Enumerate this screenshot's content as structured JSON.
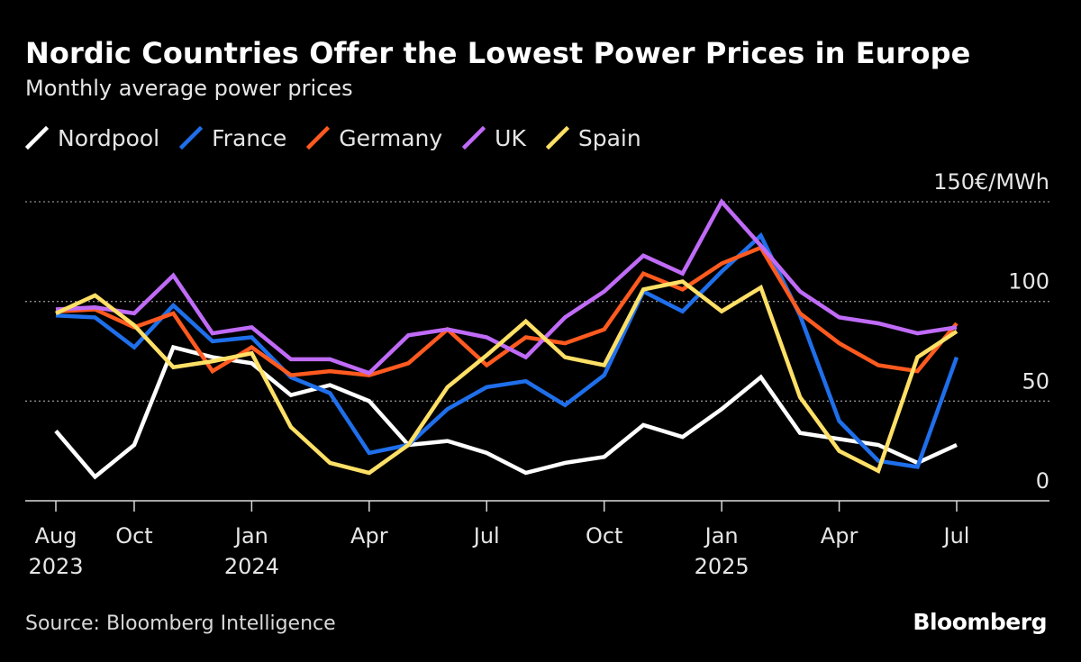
{
  "header": {
    "title": "Nordic Countries Offer the Lowest Power Prices in Europe",
    "subtitle": "Monthly average power prices"
  },
  "legend": [
    {
      "name": "Nordpool",
      "color": "#ffffff"
    },
    {
      "name": "France",
      "color": "#1f6feb"
    },
    {
      "name": "Germany",
      "color": "#ff5a1f"
    },
    {
      "name": "UK",
      "color": "#c06bf7"
    },
    {
      "name": "Spain",
      "color": "#ffe066"
    }
  ],
  "footer": {
    "source": "Source: Bloomberg Intelligence",
    "brand": "Bloomberg"
  },
  "chart_data": {
    "type": "line",
    "title": "Nordic Countries Offer the Lowest Power Prices in Europe",
    "subtitle": "Monthly average power prices",
    "xlabel": "",
    "ylabel": "€/MWh",
    "ylim": [
      0,
      150
    ],
    "yticks": [
      0,
      50,
      100,
      150
    ],
    "ytick_labels": [
      "0",
      "50",
      "100",
      "150€/MWh"
    ],
    "grid": true,
    "legend_position": "top-left",
    "x": [
      "2023-08",
      "2023-09",
      "2023-10",
      "2023-11",
      "2023-12",
      "2024-01",
      "2024-02",
      "2024-03",
      "2024-04",
      "2024-05",
      "2024-06",
      "2024-07",
      "2024-08",
      "2024-09",
      "2024-10",
      "2024-11",
      "2024-12",
      "2025-01",
      "2025-02",
      "2025-03",
      "2025-04",
      "2025-05",
      "2025-06",
      "2025-07"
    ],
    "xtick_labels": [
      {
        "index": 0,
        "month": "Aug",
        "year": "2023"
      },
      {
        "index": 2,
        "month": "Oct",
        "year": ""
      },
      {
        "index": 5,
        "month": "Jan",
        "year": "2024"
      },
      {
        "index": 8,
        "month": "Apr",
        "year": ""
      },
      {
        "index": 11,
        "month": "Jul",
        "year": ""
      },
      {
        "index": 14,
        "month": "Oct",
        "year": ""
      },
      {
        "index": 17,
        "month": "Jan",
        "year": "2025"
      },
      {
        "index": 20,
        "month": "Apr",
        "year": ""
      },
      {
        "index": 23,
        "month": "Jul",
        "year": ""
      }
    ],
    "series": [
      {
        "name": "Nordpool",
        "color": "#ffffff",
        "values": [
          35,
          12,
          28,
          77,
          72,
          69,
          53,
          58,
          50,
          28,
          30,
          24,
          14,
          19,
          22,
          38,
          32,
          46,
          62,
          34,
          31,
          28,
          19,
          28
        ]
      },
      {
        "name": "France",
        "color": "#1f6feb",
        "values": [
          93,
          92,
          77,
          98,
          80,
          82,
          62,
          54,
          24,
          28,
          46,
          57,
          60,
          48,
          63,
          105,
          95,
          115,
          133,
          93,
          40,
          20,
          17,
          72
        ]
      },
      {
        "name": "Germany",
        "color": "#ff5a1f",
        "values": [
          95,
          96,
          87,
          94,
          65,
          77,
          63,
          65,
          63,
          69,
          86,
          68,
          82,
          79,
          86,
          114,
          106,
          119,
          127,
          94,
          79,
          68,
          65,
          89
        ]
      },
      {
        "name": "UK",
        "color": "#c06bf7",
        "values": [
          96,
          97,
          94,
          113,
          84,
          87,
          71,
          71,
          64,
          83,
          86,
          82,
          72,
          92,
          105,
          123,
          114,
          150,
          128,
          105,
          92,
          89,
          84,
          87
        ]
      },
      {
        "name": "Spain",
        "color": "#ffe066",
        "values": [
          94,
          103,
          88,
          67,
          70,
          74,
          37,
          19,
          14,
          28,
          57,
          73,
          90,
          72,
          68,
          106,
          110,
          95,
          107,
          52,
          25,
          15,
          72,
          85
        ]
      }
    ]
  }
}
